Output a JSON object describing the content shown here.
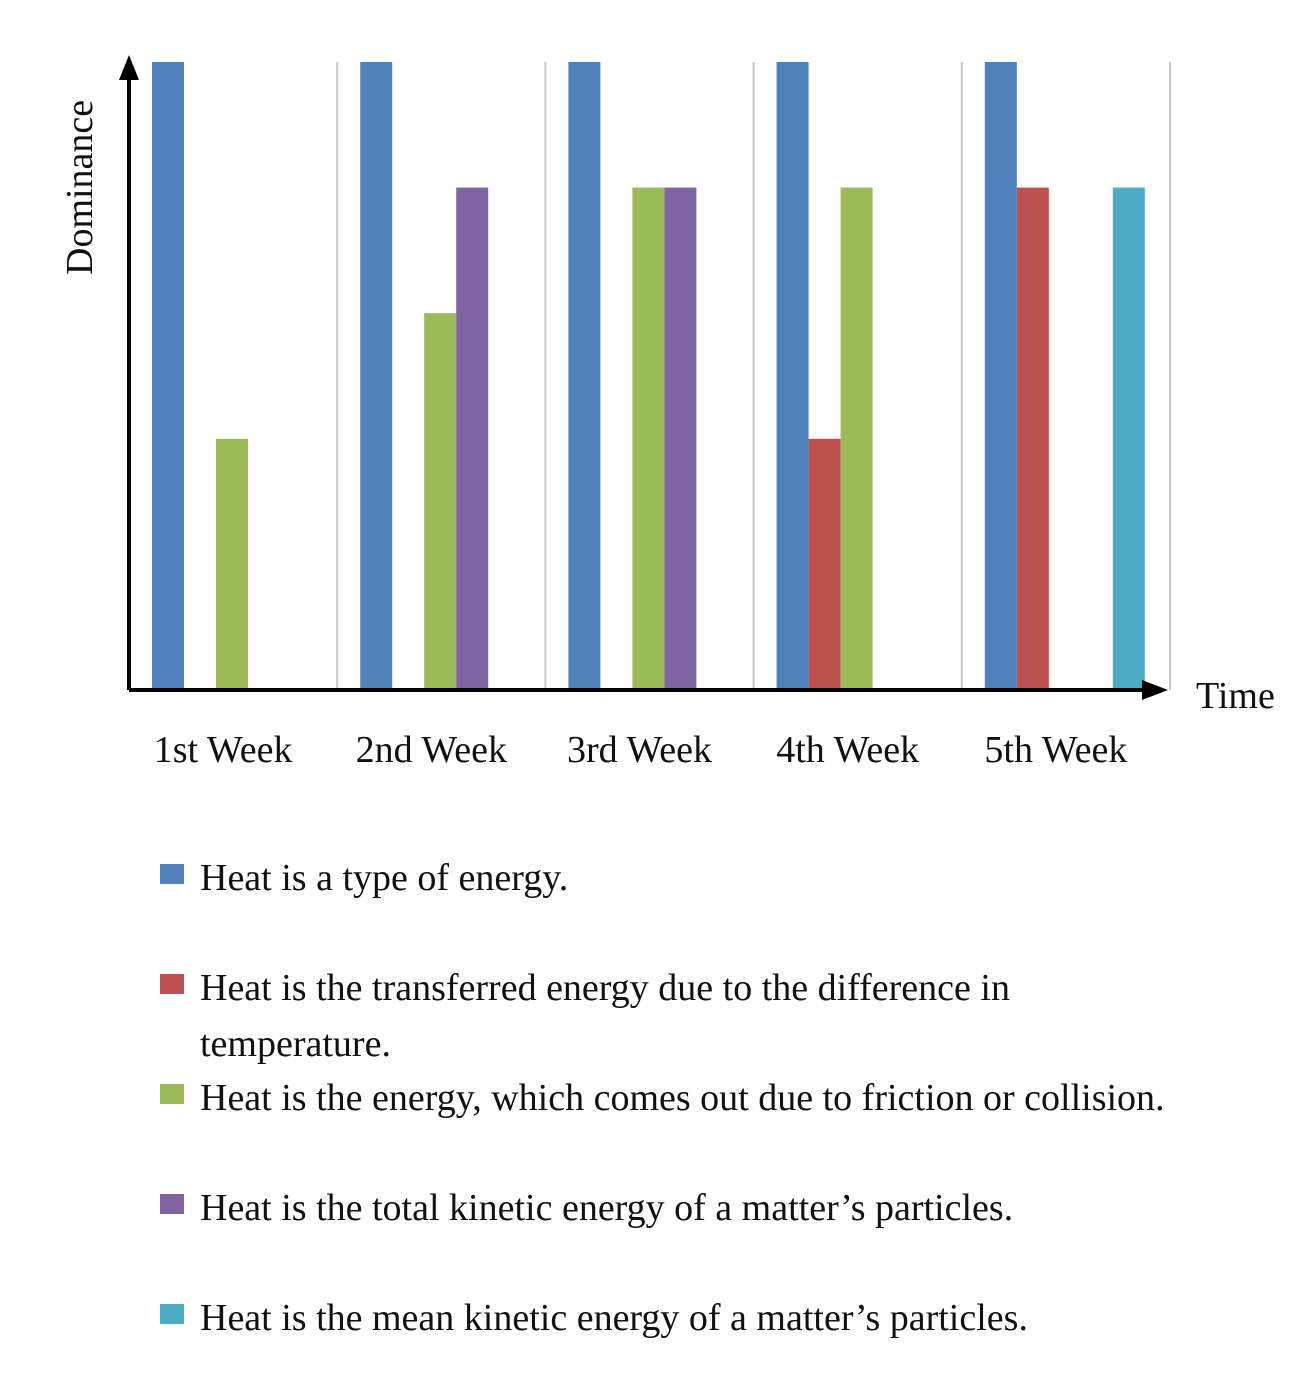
{
  "chart_data": {
    "type": "bar",
    "title": "",
    "xlabel": "Time",
    "ylabel": "Dominance",
    "ylim": [
      0,
      5
    ],
    "grid": "vertical separators between categories",
    "legend_position": "bottom",
    "categories": [
      "1st Week",
      "2nd Week",
      "3rd Week",
      "4th Week",
      "5th Week"
    ],
    "series": [
      {
        "name": "Heat is a type of energy.",
        "color": "#4f81bd",
        "values": [
          5,
          5,
          5,
          5,
          5
        ]
      },
      {
        "name": "Heat is the transferred energy due to the difference in temperature.",
        "color": "#c0504d",
        "values": [
          0,
          0,
          0,
          2,
          4
        ]
      },
      {
        "name": "Heat is the energy, which comes out due to friction or collision.",
        "color": "#9bbb59",
        "values": [
          2,
          3,
          4,
          4,
          0
        ]
      },
      {
        "name": "Heat is the total kinetic energy of a matter’s particles.",
        "color": "#8064a2",
        "values": [
          0,
          4,
          4,
          0,
          0
        ]
      },
      {
        "name": "Heat is the mean kinetic energy of a matter’s particles.",
        "color": "#4bacc6",
        "values": [
          0,
          0,
          0,
          0,
          4
        ]
      }
    ]
  }
}
